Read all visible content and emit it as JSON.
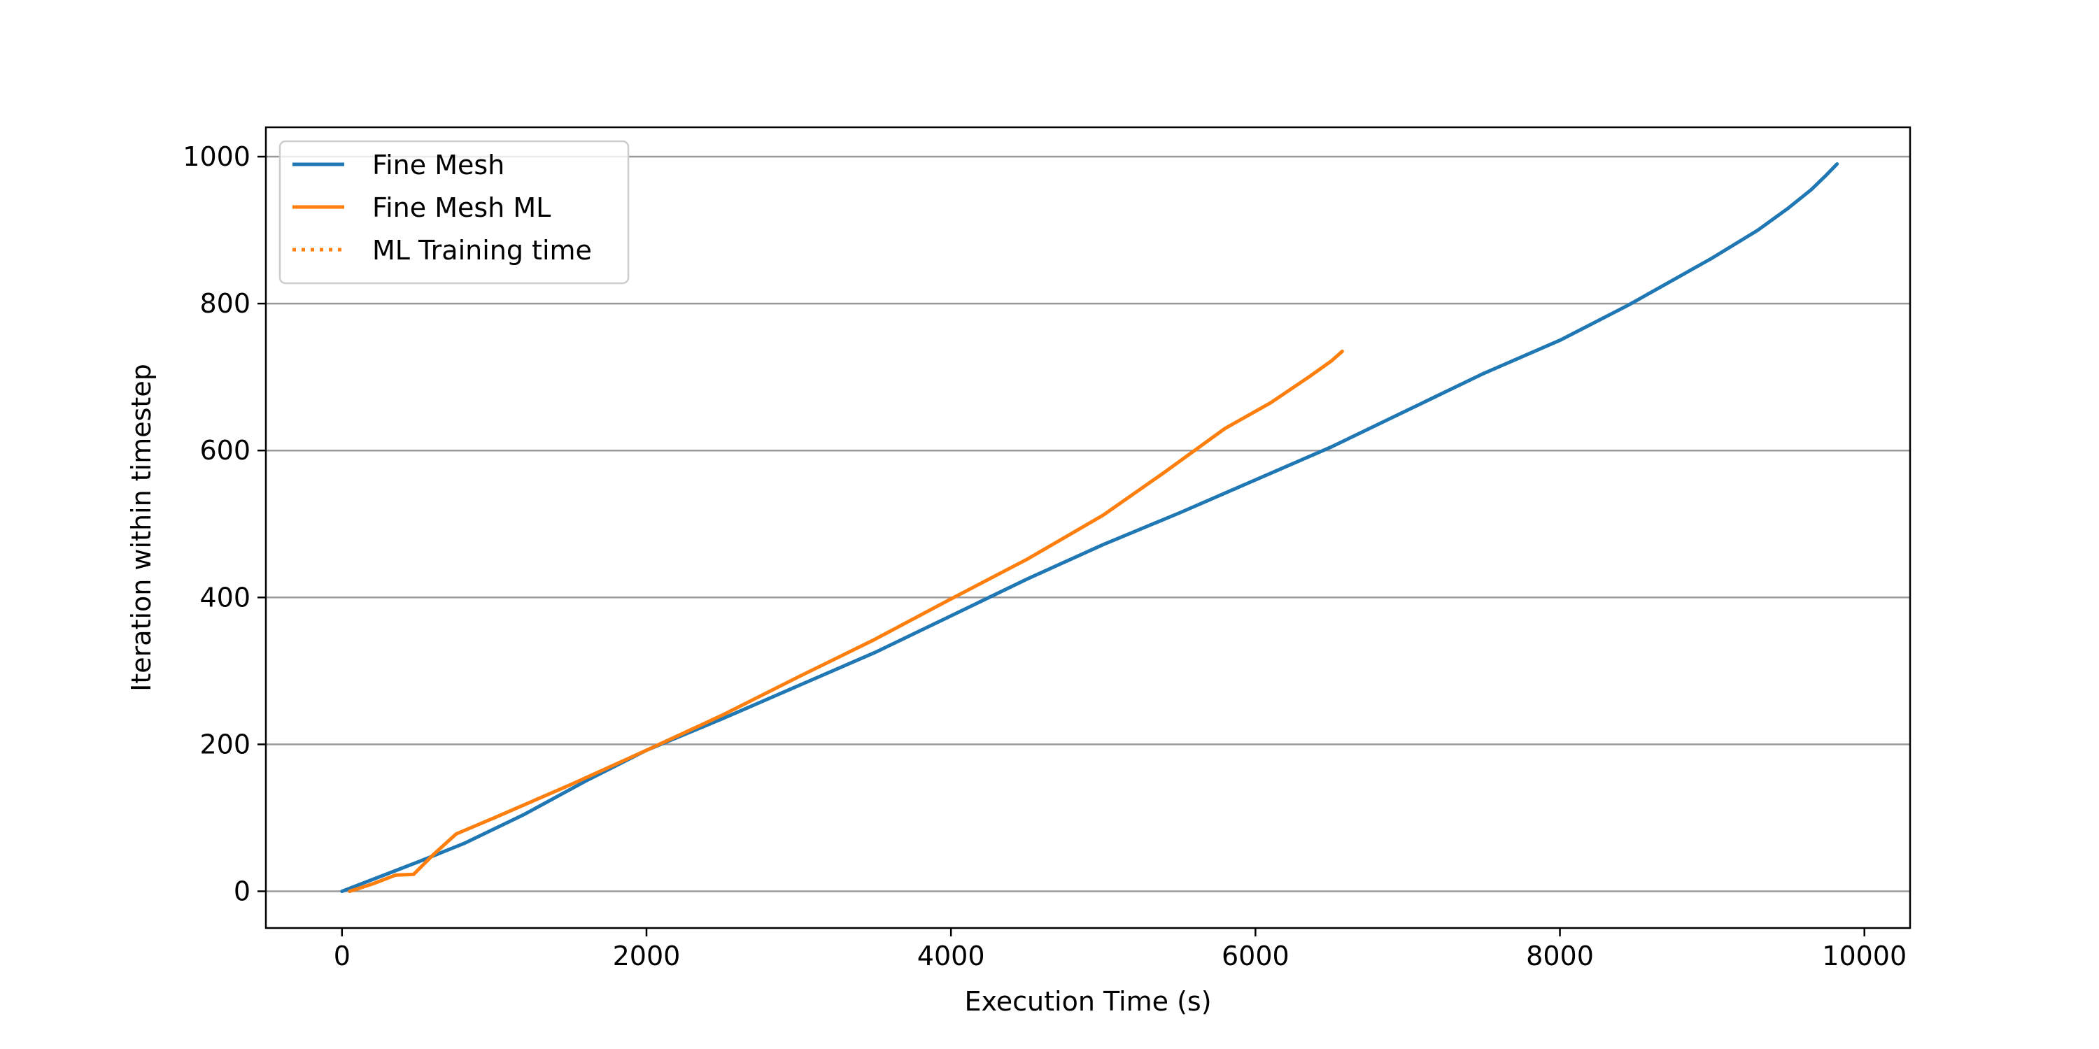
{
  "chart_data": {
    "type": "line",
    "xlabel": "Execution Time (s)",
    "ylabel": "Iteration within timestep",
    "xlim": [
      -500,
      10300
    ],
    "ylim": [
      -50,
      1040
    ],
    "xticks": [
      0,
      2000,
      4000,
      6000,
      8000,
      10000
    ],
    "xtick_labels": [
      "0",
      "2000",
      "4000",
      "6000",
      "8000",
      "10000"
    ],
    "yticks": [
      0,
      200,
      400,
      600,
      800,
      1000
    ],
    "ytick_labels": [
      "0",
      "200",
      "400",
      "600",
      "800",
      "1000"
    ],
    "grid": "y",
    "legend_position": "top-left",
    "series": [
      {
        "name": "Fine Mesh",
        "color": "#1f77b4",
        "style": "solid",
        "points": [
          [
            0,
            0
          ],
          [
            250,
            20
          ],
          [
            500,
            40
          ],
          [
            800,
            65
          ],
          [
            1200,
            105
          ],
          [
            1600,
            150
          ],
          [
            2000,
            192
          ],
          [
            2500,
            235
          ],
          [
            3000,
            280
          ],
          [
            3500,
            325
          ],
          [
            4000,
            375
          ],
          [
            4500,
            425
          ],
          [
            5000,
            472
          ],
          [
            5500,
            515
          ],
          [
            6000,
            560
          ],
          [
            6500,
            605
          ],
          [
            7000,
            655
          ],
          [
            7500,
            705
          ],
          [
            8000,
            750
          ],
          [
            8450,
            798
          ],
          [
            9000,
            862
          ],
          [
            9300,
            900
          ],
          [
            9500,
            930
          ],
          [
            9650,
            955
          ],
          [
            9750,
            975
          ],
          [
            9820,
            990
          ]
        ]
      },
      {
        "name": "Fine Mesh ML",
        "color": "#ff7f0e",
        "style": "solid",
        "points": [
          [
            50,
            0
          ],
          [
            200,
            10
          ],
          [
            350,
            22
          ],
          [
            470,
            23
          ],
          [
            600,
            50
          ],
          [
            750,
            78
          ],
          [
            1000,
            100
          ],
          [
            1500,
            145
          ],
          [
            2000,
            192
          ],
          [
            2500,
            240
          ],
          [
            3000,
            292
          ],
          [
            3500,
            343
          ],
          [
            4000,
            398
          ],
          [
            4500,
            452
          ],
          [
            5000,
            512
          ],
          [
            5400,
            570
          ],
          [
            5800,
            630
          ],
          [
            6100,
            665
          ],
          [
            6350,
            700
          ],
          [
            6500,
            722
          ],
          [
            6570,
            735
          ]
        ]
      },
      {
        "name": "ML Training time",
        "color": "#ff7f0e",
        "style": "dotted",
        "points": []
      }
    ]
  }
}
